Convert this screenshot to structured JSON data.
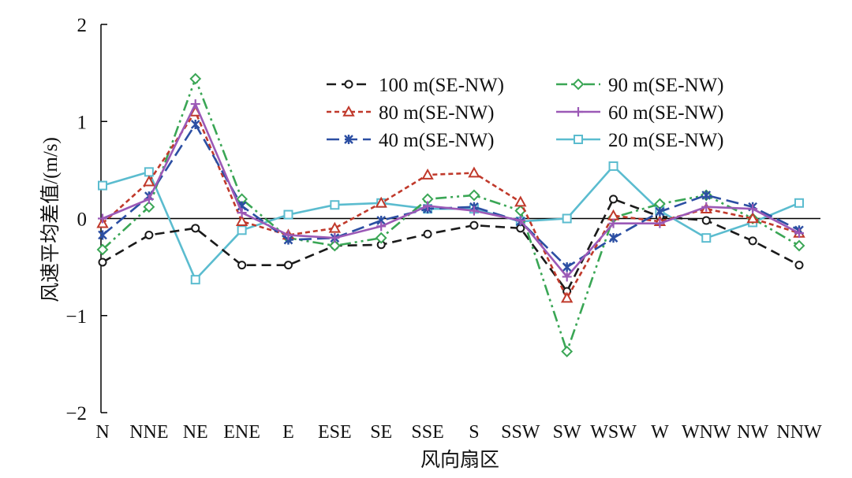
{
  "chart_data": {
    "type": "line",
    "title": "",
    "xlabel": "风向扇区",
    "ylabel": "风速平均差值/(m/s)",
    "ylim": [
      -2,
      2
    ],
    "yticks": [
      "2",
      "1",
      "0",
      "−1",
      "−2"
    ],
    "ytick_values": [
      2,
      1,
      0,
      -1,
      -2
    ],
    "categories": [
      "N",
      "NNE",
      "NE",
      "ENE",
      "E",
      "ESE",
      "SE",
      "SSE",
      "S",
      "SSW",
      "SW",
      "WSW",
      "W",
      "WNW",
      "NW",
      "NNW"
    ],
    "legend_position": "top-right",
    "series": [
      {
        "name": "100 m(SE-NW)",
        "color": "#1a1a1a",
        "marker": "circle",
        "dash": "dash",
        "values": [
          -0.45,
          -0.17,
          -0.1,
          -0.48,
          -0.48,
          -0.28,
          -0.27,
          -0.16,
          -0.07,
          -0.1,
          -0.75,
          0.2,
          0.02,
          -0.02,
          -0.23,
          -0.48
        ]
      },
      {
        "name": "90 m(SE-NW)",
        "color": "#3aa655",
        "marker": "diamond",
        "dash": "dashdotdot",
        "values": [
          -0.32,
          0.12,
          1.44,
          0.2,
          -0.2,
          -0.28,
          -0.2,
          0.2,
          0.24,
          0.08,
          -1.37,
          0.01,
          0.15,
          0.24,
          0.0,
          -0.28
        ]
      },
      {
        "name": "80 m(SE-NW)",
        "color": "#c0392b",
        "marker": "triangle",
        "dash": "shortdash",
        "values": [
          -0.05,
          0.38,
          1.1,
          -0.03,
          -0.17,
          -0.1,
          0.16,
          0.45,
          0.47,
          0.17,
          -0.82,
          0.03,
          -0.03,
          0.1,
          0.0,
          -0.15
        ]
      },
      {
        "name": "60 m(SE-NW)",
        "color": "#9b59b6",
        "marker": "plus",
        "dash": "solid",
        "values": [
          0.0,
          0.2,
          1.18,
          0.06,
          -0.17,
          -0.2,
          -0.08,
          0.13,
          0.08,
          -0.02,
          -0.6,
          -0.05,
          -0.05,
          0.12,
          0.1,
          -0.15
        ]
      },
      {
        "name": "40 m(SE-NW)",
        "color": "#2c4fa3",
        "marker": "star",
        "dash": "longdash",
        "values": [
          -0.17,
          0.23,
          0.97,
          0.13,
          -0.22,
          -0.2,
          -0.02,
          0.1,
          0.12,
          -0.03,
          -0.5,
          -0.2,
          0.07,
          0.24,
          0.12,
          -0.12
        ]
      },
      {
        "name": "20 m(SE-NW)",
        "color": "#5bbccf",
        "marker": "square",
        "dash": "solid",
        "values": [
          0.34,
          0.48,
          -0.63,
          -0.12,
          0.04,
          0.14,
          0.16,
          0.1,
          0.1,
          -0.03,
          0.0,
          0.54,
          0.08,
          -0.2,
          -0.04,
          0.16
        ]
      }
    ]
  }
}
